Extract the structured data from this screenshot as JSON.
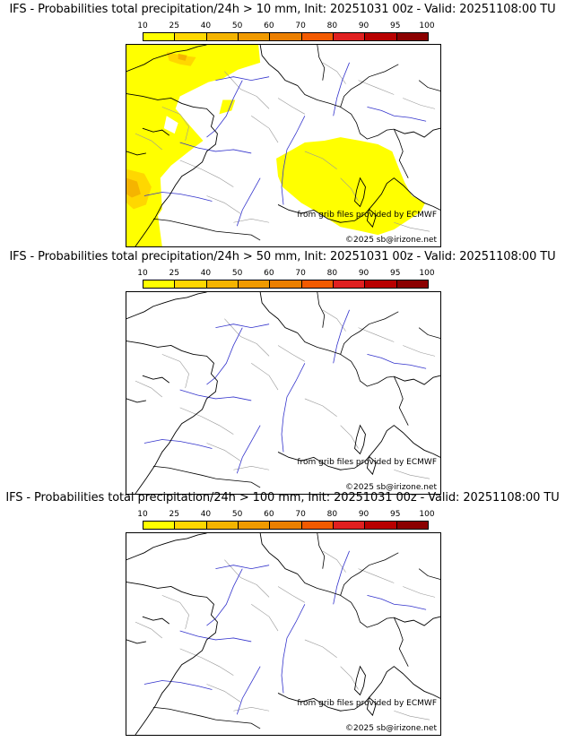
{
  "colorbar": {
    "ticks": [
      "10",
      "25",
      "40",
      "50",
      "60",
      "70",
      "80",
      "90",
      "95",
      "100"
    ],
    "colors": [
      "#ffff00",
      "#ffd700",
      "#f5b400",
      "#f09a00",
      "#eb7f00",
      "#f25a00",
      "#e02020",
      "#b80000",
      "#8b0000"
    ]
  },
  "map": {
    "credit": "from grib files provided by ECMWF",
    "copyright": "©2025 sb@irizone.net",
    "land_border_color": "#000000",
    "river_color": "#3333cc",
    "admin_border_color": "#999999"
  },
  "panels": [
    {
      "title": "IFS - Probabilities total precipitation/24h > 10 mm, Init: 20251031 00z - Valid: 20251108:00 TU",
      "threshold": "10 mm",
      "has_precip_shading": true
    },
    {
      "title": "IFS - Probabilities total precipitation/24h > 50 mm, Init: 20251031 00z - Valid: 20251108:00 TU",
      "threshold": "50 mm",
      "has_precip_shading": false
    },
    {
      "title": "IFS - Probabilities total precipitation/24h > 100 mm, Init: 20251031 00z - Valid: 20251108:00 TU",
      "threshold": "100 mm",
      "has_precip_shading": false
    }
  ]
}
